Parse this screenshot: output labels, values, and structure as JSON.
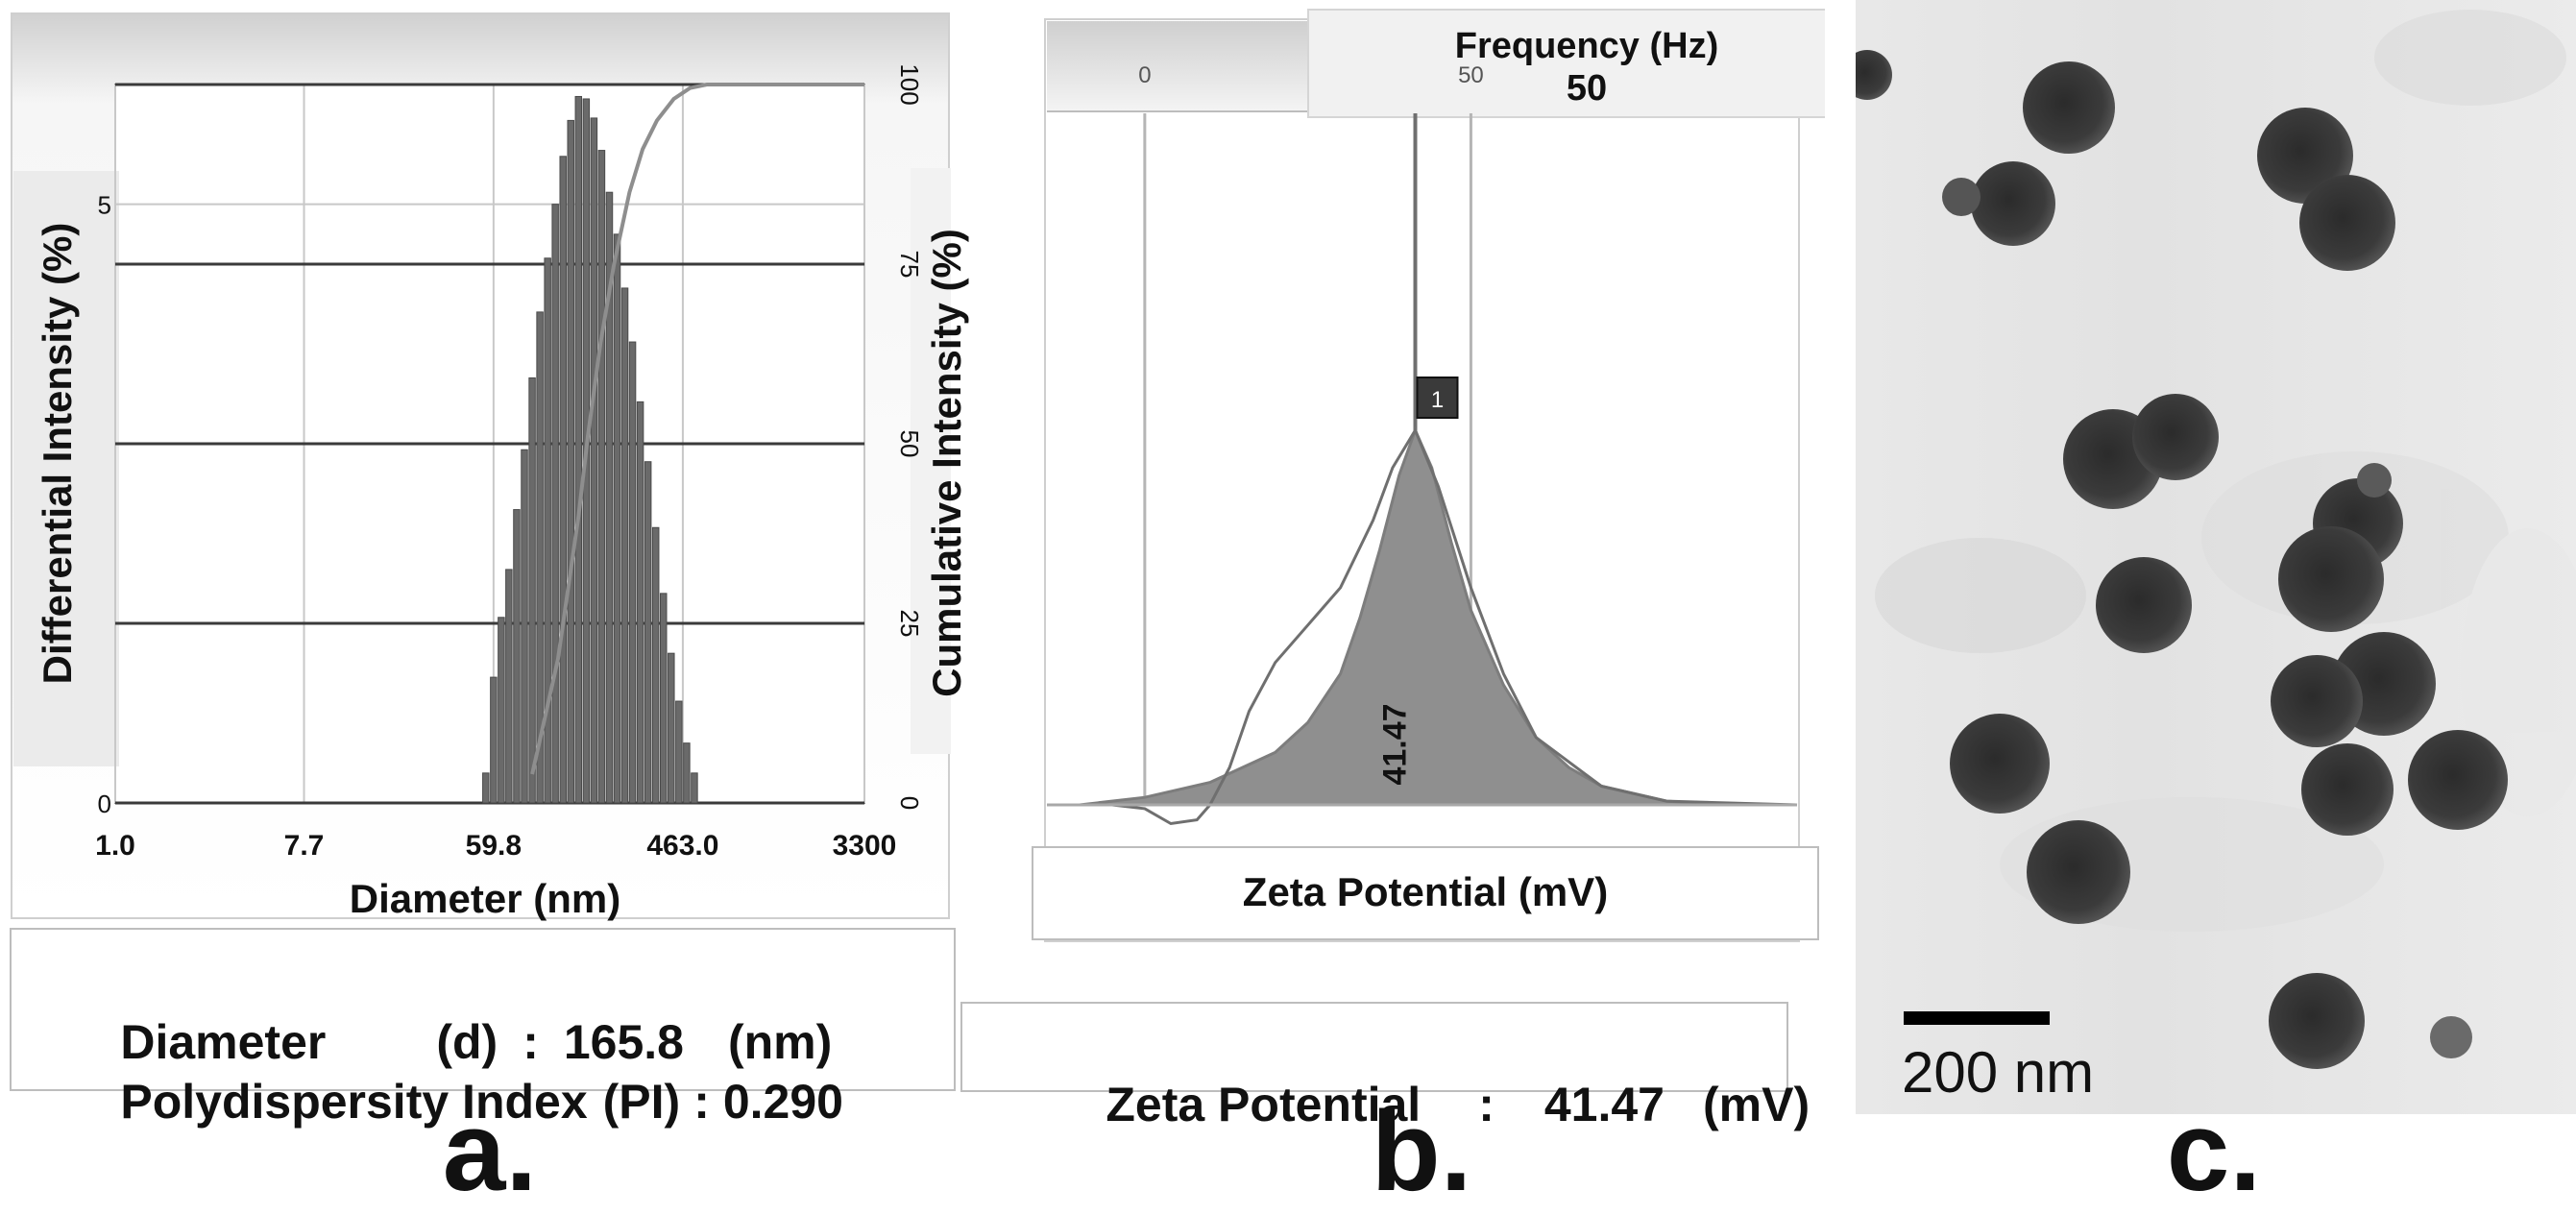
{
  "panel_labels": {
    "a": "a.",
    "b": "b.",
    "c": "c."
  },
  "panel_a": {
    "summary": {
      "diameter_label": "Diameter",
      "diameter_symbol": "(d)",
      "separator": ":",
      "diameter_value": "165.8",
      "diameter_unit": "(nm)",
      "pi_label": "Polydispersity Index",
      "pi_symbol": "(PI)",
      "pi_value": "0.290"
    }
  },
  "panel_b": {
    "summary": {
      "label": "Zeta Potential",
      "separator": ":",
      "value": "41.47",
      "unit": "(mV)"
    },
    "frequency_header": {
      "title": "Frequency (Hz)",
      "value": "50"
    }
  },
  "panel_c": {
    "scale_label": "200 nm",
    "background_color": "#e6e6e6",
    "particle_color": "#3a3a3a"
  },
  "chart_data": [
    {
      "type": "bar",
      "title": "",
      "xlabel": "Diameter (nm)",
      "ylabel": "Differential Intensity (%)",
      "y2label": "Cumulative Intensity (%)",
      "xscale": "log",
      "xlim": [
        1.0,
        3300
      ],
      "xticks": [
        "1.0",
        "7.7",
        "59.8",
        "463.0",
        "3300"
      ],
      "xtick_values": [
        1.0,
        7.7,
        59.8,
        463.0,
        3300
      ],
      "ylim": [
        0,
        6
      ],
      "yticks": [
        "0",
        "5"
      ],
      "ytick_values": [
        0,
        5
      ],
      "y2lim": [
        0,
        100
      ],
      "y2ticks": [
        "0",
        "25",
        "50",
        "75",
        "100"
      ],
      "y2tick_values": [
        0,
        25,
        50,
        75,
        100
      ],
      "bin_centers": [
        55.0,
        59.8,
        65.0,
        70.6,
        76.8,
        83.5,
        90.8,
        98.7,
        107.3,
        116.6,
        126.8,
        137.8,
        149.8,
        162.9,
        177.1,
        192.5,
        209.3,
        227.5,
        247.3,
        268.8,
        292.2,
        317.7,
        345.4,
        375.5,
        408.2,
        443.8,
        482.5,
        524.5
      ],
      "differential_intensity": [
        0.25,
        1.05,
        1.55,
        1.95,
        2.45,
        2.95,
        3.55,
        4.1,
        4.55,
        5.0,
        5.4,
        5.7,
        5.9,
        5.88,
        5.72,
        5.45,
        5.1,
        4.75,
        4.3,
        3.85,
        3.35,
        2.85,
        2.3,
        1.75,
        1.25,
        0.85,
        0.5,
        0.25
      ],
      "cumulative_intensity": {
        "x": [
          90.8,
          120,
          150,
          165.8,
          190,
          220,
          260,
          300,
          350,
          420,
          500,
          600,
          3300
        ],
        "y": [
          4,
          20,
          40,
          51,
          64,
          75,
          85,
          91,
          95,
          98,
          99.5,
          100,
          100
        ]
      }
    },
    {
      "type": "line",
      "title": "",
      "xlabel": "Zeta Potential (mV)",
      "ylabel": "",
      "header_label": "Frequency (Hz)",
      "header_value": "50",
      "xlim": [
        -15,
        100
      ],
      "x_gridlines": [
        0,
        41.47,
        50,
        100
      ],
      "x_gridline_labels": [
        "0",
        "",
        "50",
        ""
      ],
      "peak_marker_label": "1",
      "peak_value": 41.47,
      "peak_value_label": "41.47",
      "distribution": {
        "x": [
          -10,
          0,
          10,
          20,
          25,
          30,
          33,
          36,
          39,
          41.47,
          44,
          47,
          50,
          55,
          60,
          65,
          70,
          80,
          90,
          100
        ],
        "y": [
          0,
          2,
          6,
          14,
          22,
          35,
          50,
          68,
          88,
          100,
          90,
          70,
          52,
          32,
          18,
          10,
          5,
          1,
          0,
          0
        ]
      },
      "fit_curve": {
        "x": [
          -15,
          -5,
          0,
          4,
          8,
          10,
          13,
          16,
          20,
          25,
          30,
          35,
          38,
          41.47,
          45,
          50,
          55,
          60,
          70,
          80,
          100
        ],
        "y": [
          0,
          0,
          -1,
          -5,
          -4,
          0,
          10,
          25,
          38,
          48,
          58,
          76,
          90,
          100,
          85,
          58,
          35,
          18,
          5,
          1,
          0
        ]
      }
    }
  ]
}
